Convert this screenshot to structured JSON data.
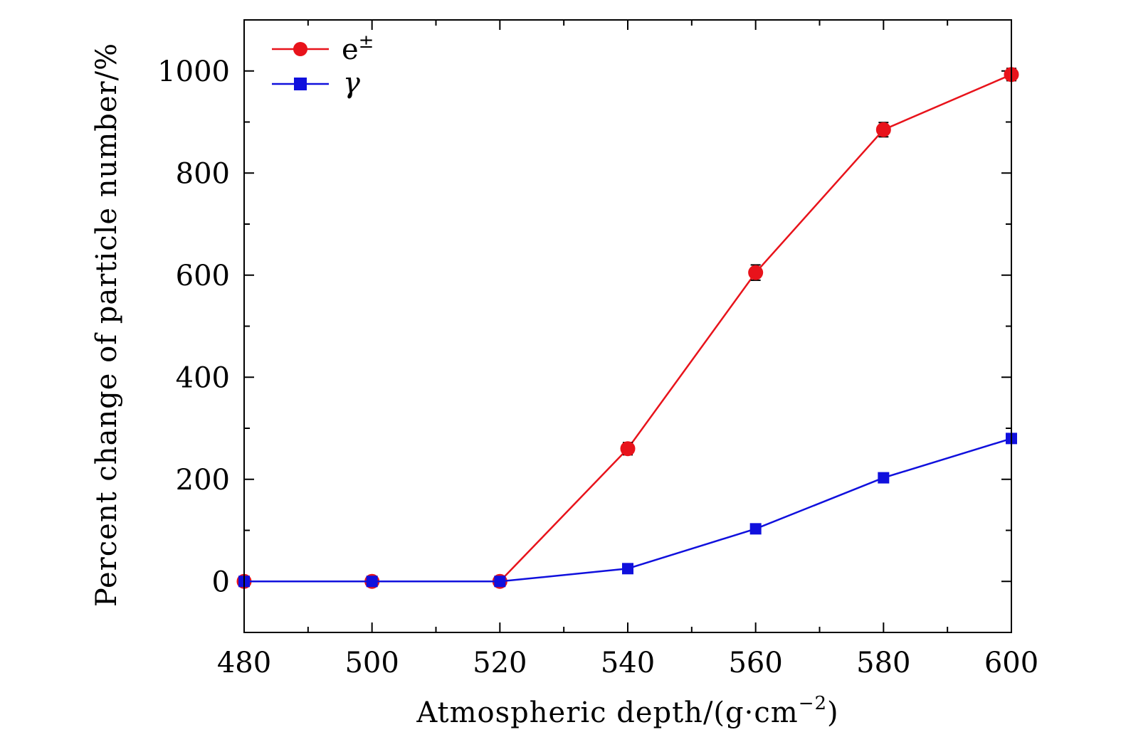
{
  "chart_data": {
    "type": "line",
    "title": "",
    "xlabel": "Atmospheric depth/(g·cm",
    "xlabel_exponent": "−2",
    "xlabel_close": ")",
    "ylabel": "Percent change of particle number/%",
    "xlim": [
      480,
      600
    ],
    "ylim": [
      -100,
      1100
    ],
    "xticks": [
      480,
      500,
      520,
      540,
      560,
      580,
      600
    ],
    "yticks": [
      0,
      200,
      400,
      600,
      800,
      1000
    ],
    "x_minor_step": 10,
    "y_minor_step": 100,
    "legend_position": "top-left",
    "series": [
      {
        "name": "e±",
        "color": "#e8131b",
        "marker": "circle",
        "x": [
          480,
          500,
          520,
          540,
          560,
          580,
          600
        ],
        "values": [
          0,
          0,
          0,
          260,
          605,
          885,
          993
        ],
        "errors": [
          6,
          8,
          6,
          12,
          15,
          14,
          12
        ]
      },
      {
        "name": "γ",
        "color": "#1010dd",
        "marker": "square",
        "x": [
          480,
          500,
          520,
          540,
          560,
          580,
          600
        ],
        "values": [
          0,
          0,
          0,
          25,
          103,
          203,
          280
        ],
        "errors": [
          5,
          5,
          5,
          8,
          9,
          9,
          8
        ]
      }
    ]
  }
}
